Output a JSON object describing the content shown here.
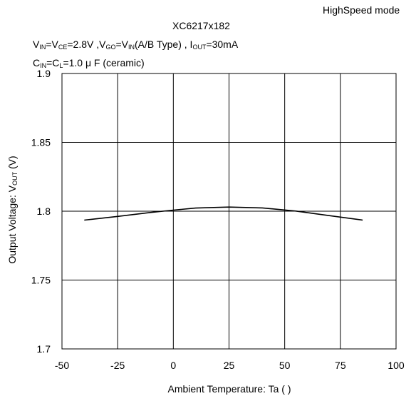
{
  "header": {
    "mode": "HighSpeed mode",
    "part": "XC6217x182",
    "cond1": {
      "v": "V",
      "in1": "IN",
      "eq1": "=V",
      "ce": "CE",
      "a": "=2.8V ,V",
      "go": "GO",
      "b": "=V",
      "in2": "IN",
      "c": "(A/B Type) , I",
      "out": "OUT",
      "d": "=30mA"
    },
    "cond2": {
      "c1": "C",
      "in": "IN",
      "eq": "=C",
      "l": "L",
      "rest": "=1.0 μ F (ceramic)"
    }
  },
  "chart_data": {
    "type": "line",
    "xlabel": "Ambient Temperature: Ta (   )",
    "ylabel_pre": "Output Voltage: V",
    "ylabel_sub": "OUT",
    "ylabel_post": " (V)",
    "xlim": [
      -50,
      100
    ],
    "ylim": [
      1.7,
      1.9
    ],
    "x_ticks": [
      -50,
      -25,
      0,
      25,
      50,
      75,
      100
    ],
    "x_tick_labels": [
      "-50",
      "-25",
      "0",
      "25",
      "50",
      "75",
      "100"
    ],
    "y_ticks": [
      1.7,
      1.75,
      1.8,
      1.85,
      1.9
    ],
    "y_tick_labels": [
      "1.7",
      "1.75",
      "1.8",
      "1.85",
      "1.9"
    ],
    "grid": true,
    "series": [
      {
        "x": [
          -40,
          -25,
          -10,
          0,
          10,
          25,
          40,
          55,
          70,
          85
        ],
        "y": [
          1.7935,
          1.7962,
          1.7991,
          1.8008,
          1.8023,
          1.803,
          1.8024,
          1.8001,
          1.7968,
          1.7935
        ],
        "color": "#000000"
      }
    ]
  }
}
